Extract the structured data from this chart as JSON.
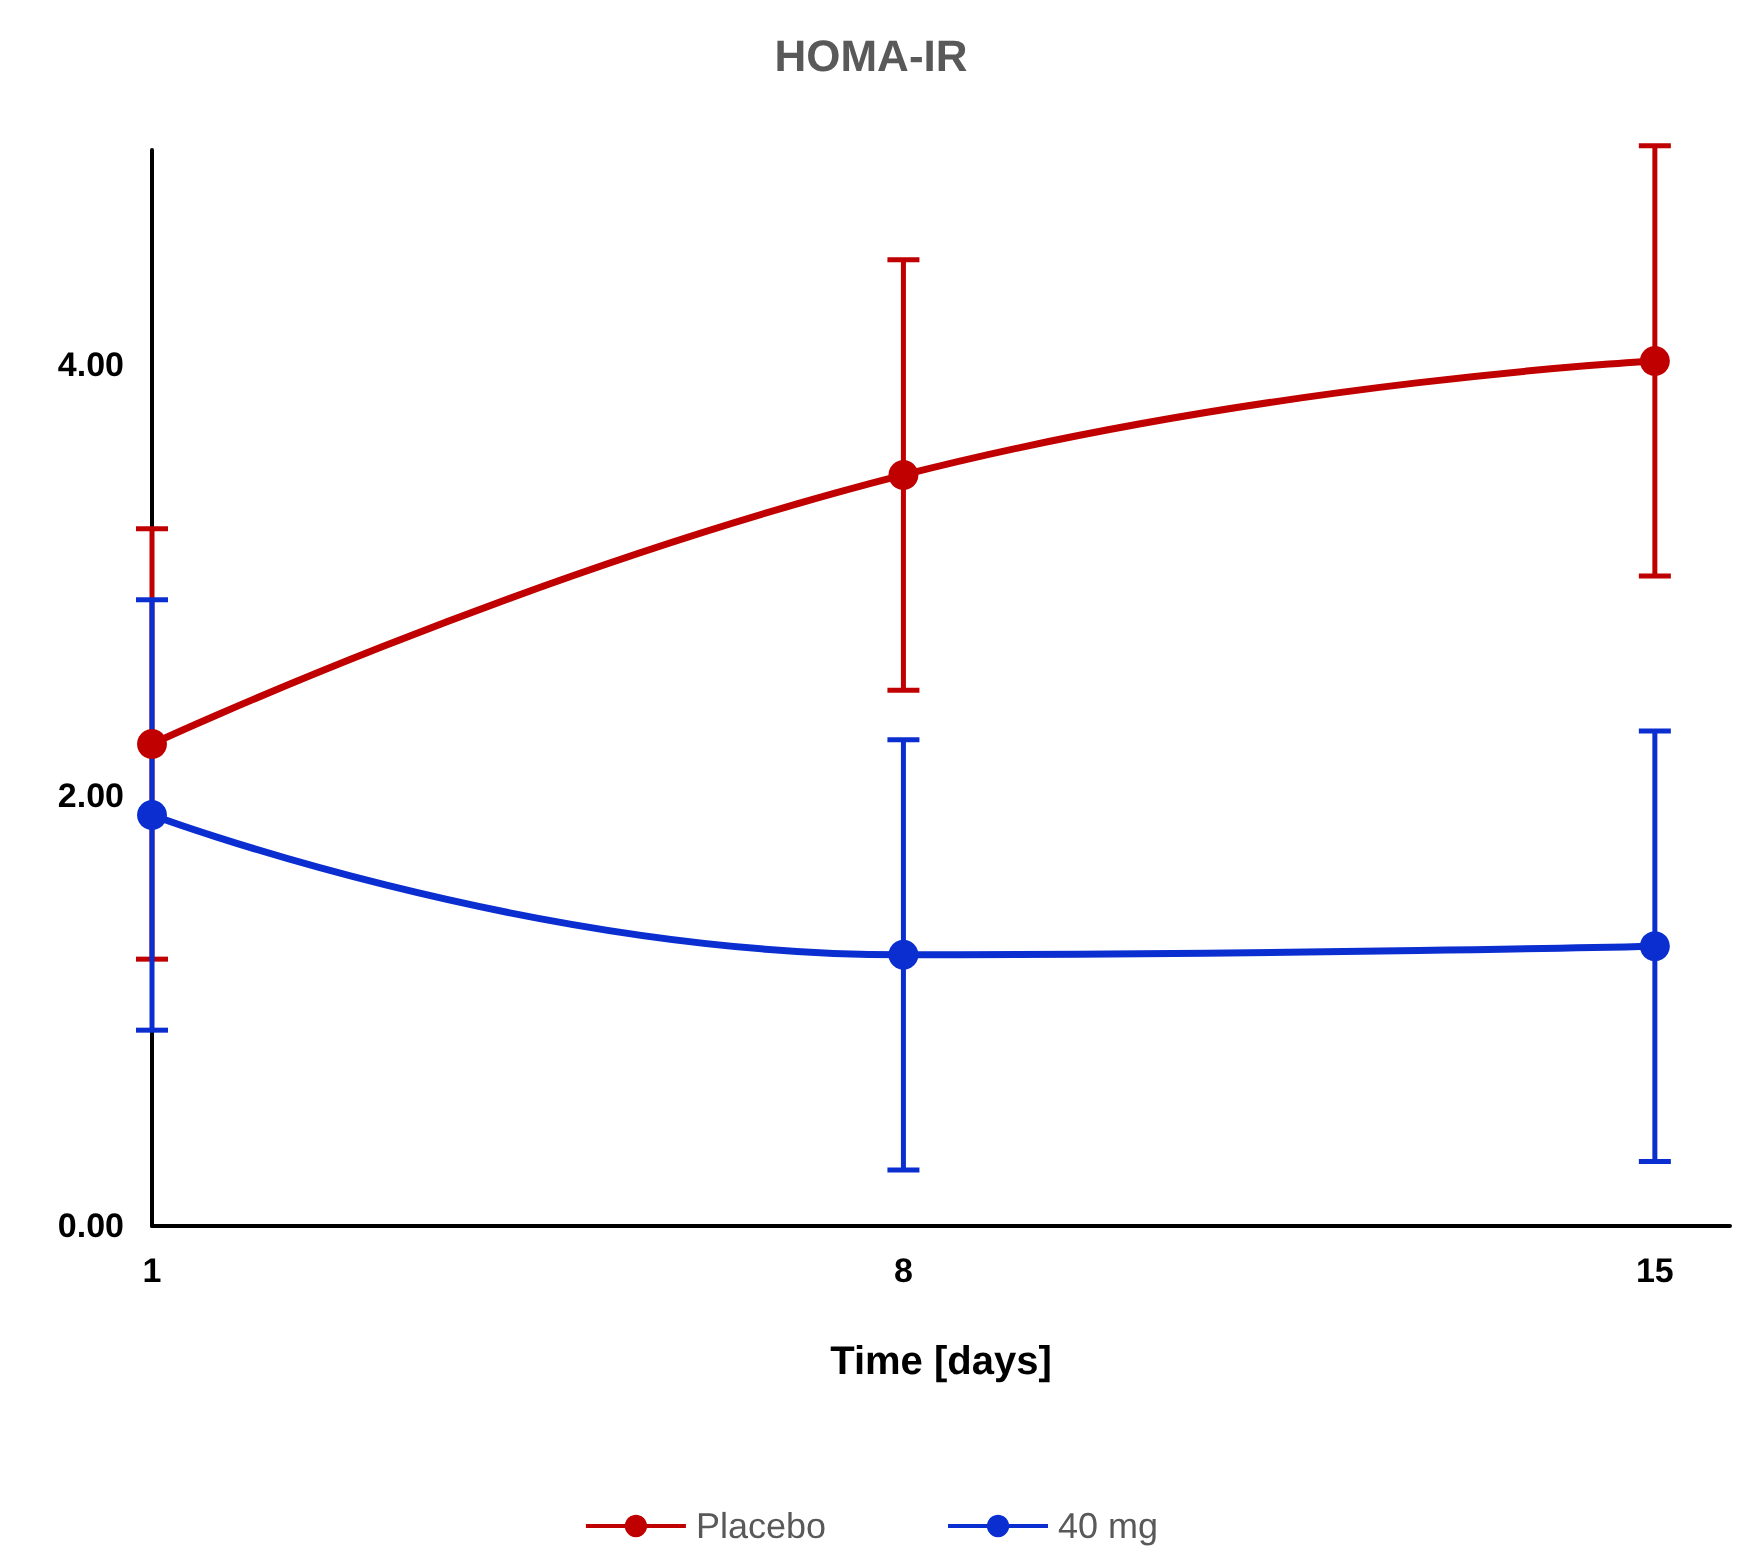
{
  "chart_data": {
    "type": "line",
    "title": "HOMA-IR",
    "xlabel": "Time [days]",
    "x": [
      1,
      8,
      15
    ],
    "series": [
      {
        "name": "Placebo",
        "color": "#c00000",
        "values": [
          2.24,
          3.49,
          4.02
        ],
        "errors": [
          1.0,
          1.0,
          1.0
        ]
      },
      {
        "name": "40 mg",
        "color": "#0b2ed0",
        "values": [
          1.91,
          1.26,
          1.3
        ],
        "errors": [
          1.0,
          1.0,
          1.0
        ]
      }
    ],
    "xlim": [
      1,
      15.7
    ],
    "xticks": [
      1,
      8,
      15
    ],
    "ylim": [
      0,
      5
    ],
    "yticks": [
      {
        "value": 0,
        "label": "0.00"
      },
      {
        "value": 2,
        "label": "2.00"
      },
      {
        "value": 4,
        "label": "4.00"
      }
    ],
    "grid": false,
    "legend": "bottom",
    "marker": "circle",
    "line_style": "solid"
  }
}
